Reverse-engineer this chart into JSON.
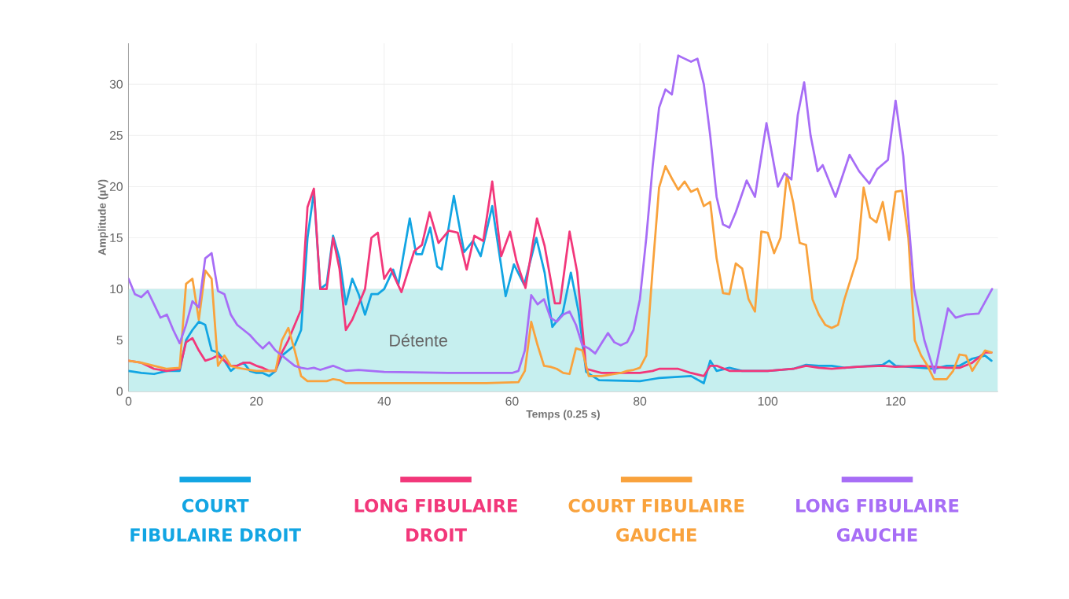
{
  "chart_data": {
    "type": "line",
    "xlabel": "Temps (0.25 s)",
    "ylabel": "Amplitude (µV)",
    "xlim": [
      0,
      136
    ],
    "ylim": [
      0,
      34
    ],
    "xticks": [
      0,
      20,
      40,
      60,
      80,
      100,
      120
    ],
    "yticks": [
      0,
      5,
      10,
      15,
      20,
      25,
      30
    ],
    "grid": true,
    "legend": "bottom",
    "line_style": "solid",
    "marker": "none",
    "bands": [
      {
        "axis": "y",
        "from": 0,
        "to": 10,
        "label": "Détente",
        "color": "#c6efef"
      }
    ],
    "series": [
      {
        "name": "COURT FIBULAIRE DROIT",
        "color": "#12a5e3",
        "x": [
          0,
          2,
          4,
          6,
          8,
          9,
          10,
          11,
          12,
          13,
          14,
          15,
          16,
          17,
          18,
          19,
          20,
          21,
          22,
          23,
          24,
          25,
          26,
          27,
          28,
          29,
          30,
          31,
          32,
          33,
          34,
          35,
          36,
          37,
          38,
          39,
          40,
          41.4,
          42.2,
          44,
          45,
          45.9,
          47.2,
          48.3,
          49,
          50.9,
          52.5,
          53.9,
          55.1,
          56.9,
          59,
          60.3,
          61.9,
          63.8,
          65.1,
          66.3,
          67.9,
          69.2,
          70.4,
          71.6,
          73.6,
          80,
          82,
          83,
          88,
          90,
          91,
          92,
          94,
          96,
          100,
          104,
          106,
          108,
          110,
          112,
          114,
          118,
          119,
          120,
          124,
          126,
          128,
          130,
          132,
          134,
          135
        ],
        "values": [
          2,
          1.8,
          1.7,
          2,
          2,
          5,
          6,
          6.8,
          6.5,
          4,
          3.8,
          3,
          2,
          2.5,
          2.8,
          2,
          1.8,
          1.8,
          1.5,
          2,
          3.5,
          4,
          4.5,
          6,
          15,
          19.5,
          10,
          10.5,
          15.2,
          13,
          8.5,
          11,
          9.5,
          7.5,
          9.5,
          9.5,
          10,
          11.9,
          10.4,
          16.9,
          13.4,
          13.4,
          16,
          12.2,
          11.9,
          19.1,
          13.6,
          14.7,
          13.2,
          18.1,
          9.3,
          12.4,
          10.4,
          15,
          11.6,
          6.3,
          7.6,
          11.6,
          7.8,
          1.9,
          1.1,
          1,
          1.2,
          1.3,
          1.5,
          0.8,
          3,
          2,
          2.3,
          2,
          2,
          2.2,
          2.6,
          2.5,
          2.5,
          2.3,
          2.4,
          2.6,
          3,
          2.5,
          2.3,
          2.2,
          2.5,
          2.5,
          3.2,
          3.5,
          3
        ]
      },
      {
        "name": "LONG FIBULAIRE DROIT",
        "color": "#f2377a",
        "x": [
          0,
          2,
          4,
          6,
          8,
          9,
          10,
          11,
          12,
          13,
          14,
          15,
          16,
          17,
          18,
          19,
          20,
          21,
          22,
          23,
          24,
          25,
          26,
          27,
          28,
          29,
          30,
          31,
          32,
          33,
          34,
          35,
          36,
          37,
          38,
          39,
          40,
          41,
          42.7,
          44.7,
          45.9,
          47.1,
          48.5,
          50.1,
          51.5,
          52.9,
          54.1,
          55.5,
          56.9,
          58.3,
          59.7,
          60.7,
          62.1,
          63.9,
          65.1,
          66.7,
          67.5,
          69,
          70.2,
          71.6,
          74,
          80,
          82,
          83,
          86,
          88,
          90,
          91,
          92,
          94,
          96,
          100,
          104,
          106,
          108,
          110,
          114,
          118,
          120,
          124,
          128,
          130,
          132,
          134,
          135
        ],
        "values": [
          3,
          2.8,
          2.2,
          2,
          2.2,
          4.8,
          5.2,
          4,
          3,
          3.2,
          3.5,
          3,
          2.5,
          2.5,
          2.8,
          2.8,
          2.5,
          2.3,
          2,
          2,
          3.8,
          5,
          6.5,
          8,
          18,
          19.8,
          10,
          10,
          15,
          12,
          6,
          7,
          8.5,
          10,
          15,
          15.5,
          11,
          12,
          9.7,
          13.7,
          14.3,
          17.5,
          14.5,
          15.7,
          15.5,
          11.9,
          15.2,
          14.7,
          20.5,
          13.2,
          15.6,
          12.7,
          10.1,
          16.9,
          14.2,
          8.6,
          8.6,
          15.6,
          11.6,
          2.2,
          1.8,
          1.8,
          2,
          2.2,
          2.2,
          1.8,
          1.5,
          2.5,
          2.5,
          2,
          2,
          2,
          2.2,
          2.5,
          2.3,
          2.2,
          2.4,
          2.5,
          2.4,
          2.5,
          2.3,
          2.3,
          2.8,
          3.8,
          3.8
        ]
      },
      {
        "name": "COURT FIBULAIRE GAUCHE",
        "color": "#f9a23c",
        "x": [
          0,
          2,
          4,
          6,
          8,
          9,
          10,
          11,
          12,
          13,
          14,
          15,
          16,
          17,
          18,
          19,
          20,
          21,
          22,
          23,
          24,
          25,
          26,
          27,
          28,
          29,
          30,
          31,
          32,
          33,
          34,
          35,
          36,
          37,
          38,
          39,
          40,
          44,
          50,
          56,
          61,
          62,
          63,
          64,
          65,
          66,
          67,
          68,
          69,
          70,
          71,
          72,
          73,
          74,
          75,
          76,
          77,
          78,
          79,
          80,
          81,
          82,
          83,
          84,
          85,
          86,
          87,
          88,
          89,
          90,
          91,
          92,
          93,
          94,
          95,
          96,
          97,
          98,
          99,
          100,
          101,
          102,
          103,
          104,
          105,
          106,
          107,
          108,
          109,
          110,
          111,
          112,
          113,
          114,
          115,
          116,
          117,
          118,
          119,
          120,
          121,
          122,
          123,
          124,
          125,
          126,
          127,
          128,
          129,
          130,
          131,
          132,
          133,
          134,
          135
        ],
        "values": [
          3,
          2.8,
          2.5,
          2.2,
          2.3,
          10.5,
          11,
          7,
          11.8,
          11,
          2.5,
          3.5,
          2.5,
          2.3,
          2.2,
          2.1,
          2,
          2,
          2,
          2,
          5,
          6.2,
          4,
          1.5,
          1,
          1,
          1,
          1,
          1.2,
          1.1,
          0.8,
          0.8,
          0.8,
          0.8,
          0.8,
          0.8,
          0.8,
          0.8,
          0.8,
          0.8,
          0.9,
          2,
          6.8,
          4.5,
          2.5,
          2.4,
          2.2,
          1.8,
          1.7,
          4.2,
          4,
          1.5,
          1.5,
          1.5,
          1.6,
          1.7,
          1.8,
          2,
          2.1,
          2.3,
          3.5,
          12,
          19.9,
          22,
          20.8,
          19.7,
          20.5,
          19.5,
          19.8,
          18.1,
          18.5,
          13,
          9.6,
          9.5,
          12.5,
          12,
          9,
          7.8,
          15.6,
          15.5,
          13.5,
          15,
          21.2,
          18.4,
          14.5,
          14.3,
          9,
          7.5,
          6.5,
          6.2,
          6.5,
          9,
          11,
          13,
          19.9,
          17,
          16.5,
          18.5,
          14.8,
          19.5,
          19.6,
          15,
          5,
          3.5,
          2.5,
          1.2,
          1.2,
          1.2,
          2,
          3.6,
          3.5,
          2,
          3,
          4,
          3.8
        ]
      },
      {
        "name": "LONG FIBULAIRE GAUCHE",
        "color": "#a76df6",
        "x": [
          0,
          1,
          2,
          3,
          4,
          5,
          6,
          7,
          8,
          9,
          10,
          11,
          12,
          13,
          14,
          15,
          16,
          17,
          18,
          19,
          20,
          21,
          22,
          23,
          24,
          25,
          26,
          27,
          28,
          29,
          30,
          32,
          34,
          36,
          40,
          50,
          60,
          61,
          62,
          63,
          64,
          65,
          66,
          67,
          68,
          69,
          70,
          71,
          72,
          73,
          75,
          76,
          77,
          78,
          79,
          80,
          81,
          82,
          83,
          84,
          85,
          86,
          87,
          88,
          89,
          90,
          91,
          92,
          93,
          94,
          95,
          96.7,
          98,
          99.8,
          101.6,
          102.6,
          103.7,
          104.7,
          105.7,
          106.7,
          107.8,
          108.6,
          110.6,
          112.8,
          114.3,
          115.9,
          117.1,
          118.8,
          120,
          121.2,
          122.9,
          124.5,
          126.1,
          128.2,
          129.4,
          131,
          133,
          135.1
        ],
        "values": [
          11,
          9.5,
          9.2,
          9.8,
          8.5,
          7.2,
          7.5,
          6,
          4.7,
          6.5,
          8.8,
          8.2,
          13,
          13.5,
          9.8,
          9.5,
          7.5,
          6.5,
          6,
          5.5,
          4.8,
          4.2,
          4.8,
          4,
          3.5,
          3,
          2.5,
          2.3,
          2.2,
          2.3,
          2.1,
          2.5,
          2,
          2.1,
          1.9,
          1.8,
          1.8,
          2,
          4,
          9.4,
          8.5,
          9,
          7.2,
          6.8,
          7.5,
          7.8,
          6.5,
          4.5,
          4.2,
          3.7,
          5.7,
          4.8,
          4.5,
          4.8,
          6,
          9,
          15,
          22,
          27.7,
          29.5,
          29,
          32.8,
          32.5,
          32.2,
          32.5,
          30,
          25,
          19,
          16.3,
          16,
          17.5,
          20.6,
          19,
          26.2,
          20,
          21.3,
          20.7,
          27,
          30.2,
          25,
          21.5,
          22.1,
          19,
          23.1,
          21.5,
          20.3,
          21.7,
          22.6,
          28.4,
          23,
          10,
          5,
          1.8,
          8.1,
          7.2,
          7.5,
          7.6,
          10
        ]
      }
    ]
  }
}
